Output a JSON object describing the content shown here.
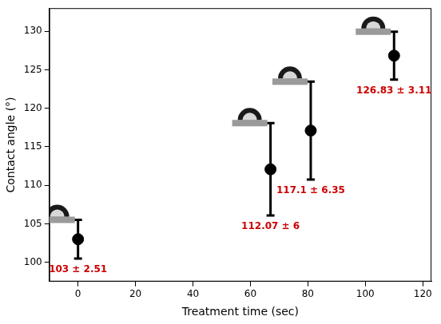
{
  "chart_data": {
    "type": "scatter",
    "x_label": "Treatment time (sec)",
    "y_label": "Contact angle (°)",
    "x": [
      0,
      67,
      81,
      110
    ],
    "values": [
      103,
      112.07,
      117.1,
      126.83
    ],
    "errors": [
      2.51,
      6,
      6.35,
      3.11
    ],
    "value_labels": [
      "103 ± 2.51",
      "112.07 ± 6",
      "117.1 ± 6.35",
      "126.83 ± 3.11"
    ],
    "data_labels": true,
    "color": "#000000",
    "label_color": "#cc0000",
    "marker": "circle",
    "xlim": [
      -10,
      123
    ],
    "xticks": [
      0,
      20,
      40,
      60,
      80,
      100,
      120
    ],
    "ylim": [
      97.5,
      133
    ],
    "yticks": [
      100,
      105,
      110,
      115,
      120,
      125,
      130
    ],
    "grid": false
  }
}
